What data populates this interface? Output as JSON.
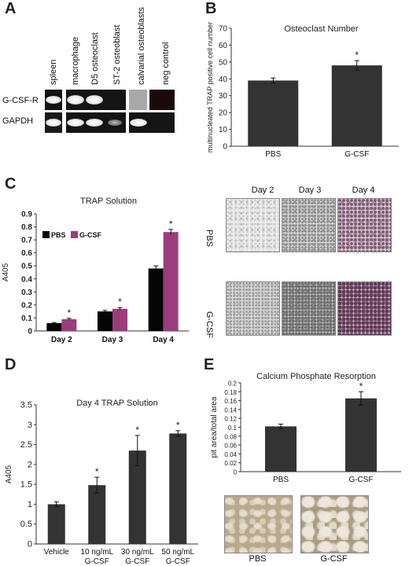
{
  "panels": {
    "a": "A",
    "b": "B",
    "c": "C",
    "d": "D",
    "e": "E"
  },
  "gel": {
    "lanes": [
      "spleen",
      "macrophage",
      "D5 osteoclast",
      "ST-2 osteoblast",
      "calvarial osteoblasts",
      "neg control"
    ],
    "rows": [
      "G-CSF-R",
      "GAPDH"
    ]
  },
  "micrographs_c": {
    "columns": [
      "Day 2",
      "Day 3",
      "Day 4"
    ],
    "rows": [
      "PBS",
      "G-CSF"
    ]
  },
  "micrographs_e": {
    "labels": [
      "PBS",
      "G-CSF"
    ]
  },
  "colors": {
    "pbs_bar": "#333333",
    "gcsf_bar": "#9b3d7c",
    "black_bar": "#050505"
  },
  "chart_data": [
    {
      "id": "B",
      "type": "bar",
      "title": "Osteoclast Number",
      "ylabel": "multinucleated TRAP positive cell number",
      "categories": [
        "PBS",
        "G-CSF"
      ],
      "values": [
        39,
        48
      ],
      "errors": [
        1.5,
        2.8
      ],
      "significance": [
        "",
        "*"
      ],
      "ylim": [
        0,
        70
      ],
      "yticks": [
        0,
        10,
        20,
        30,
        40,
        50,
        60,
        70
      ],
      "grid": false
    },
    {
      "id": "C",
      "type": "bar",
      "title": "TRAP Solution",
      "ylabel": "A405",
      "categories": [
        "Day 2",
        "Day 3",
        "Day 4"
      ],
      "series": [
        {
          "name": "PBS",
          "values": [
            0.06,
            0.15,
            0.48
          ],
          "errors": [
            0.005,
            0.008,
            0.02
          ],
          "significance": [
            "",
            "",
            ""
          ]
        },
        {
          "name": "G-CSF",
          "values": [
            0.09,
            0.17,
            0.76
          ],
          "errors": [
            0.007,
            0.01,
            0.02
          ],
          "significance": [
            "*",
            "*",
            "*"
          ]
        }
      ],
      "ylim": [
        0,
        0.9
      ],
      "yticks": [
        0,
        0.1,
        0.2,
        0.3,
        0.4,
        0.5,
        0.6,
        0.7,
        0.8,
        0.9
      ],
      "legend": "top-left",
      "grid": false
    },
    {
      "id": "D",
      "type": "bar",
      "title": "Day 4 TRAP Solution",
      "ylabel": "A405",
      "categories": [
        [
          "Vehicle"
        ],
        [
          "10 ng/mL",
          "G-CSF"
        ],
        [
          "30 ng/mL",
          "G-CSF"
        ],
        [
          "50 ng/mL",
          "G-CSF"
        ]
      ],
      "values": [
        1.0,
        1.48,
        2.35,
        2.78
      ],
      "errors": [
        0.06,
        0.2,
        0.38,
        0.07
      ],
      "significance": [
        "",
        "*",
        "*",
        "*"
      ],
      "ylim": [
        0,
        3.5
      ],
      "yticks": [
        0,
        0.5,
        1,
        1.5,
        2,
        2.5,
        3,
        3.5
      ],
      "grid": false
    },
    {
      "id": "E",
      "type": "bar",
      "title": "Calcium Phosphate Resorption",
      "ylabel": "pit area/total area",
      "categories": [
        "PBS",
        "G-CSF"
      ],
      "values": [
        0.102,
        0.165
      ],
      "errors": [
        0.005,
        0.015
      ],
      "significance": [
        "",
        "*"
      ],
      "ylim": [
        0,
        0.2
      ],
      "yticks": [
        0,
        0.02,
        0.04,
        0.06,
        0.08,
        0.1,
        0.12,
        0.14,
        0.16,
        0.18,
        0.2
      ],
      "grid": false
    }
  ]
}
